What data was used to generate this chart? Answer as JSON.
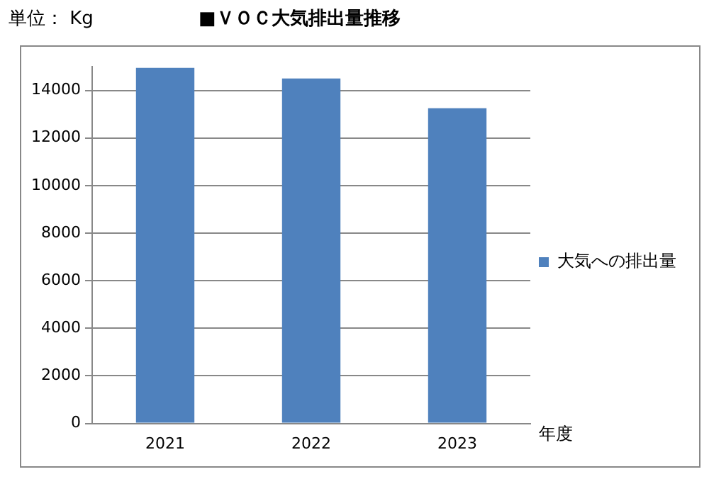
{
  "chart_data": {
    "type": "bar",
    "title": "■ＶＯＣ大気排出量推移",
    "ylabel": "単位： Kg",
    "xlabel": "年度",
    "categories": [
      "2021",
      "2022",
      "2023"
    ],
    "series": [
      {
        "name": "大気への排出量",
        "color": "#4f81bd",
        "values": [
          14950,
          14500,
          13250
        ]
      }
    ],
    "ylim": [
      0,
      15000
    ],
    "yticks": [
      0,
      2000,
      4000,
      6000,
      8000,
      10000,
      12000,
      14000
    ],
    "grid": "y",
    "legend": "right"
  }
}
